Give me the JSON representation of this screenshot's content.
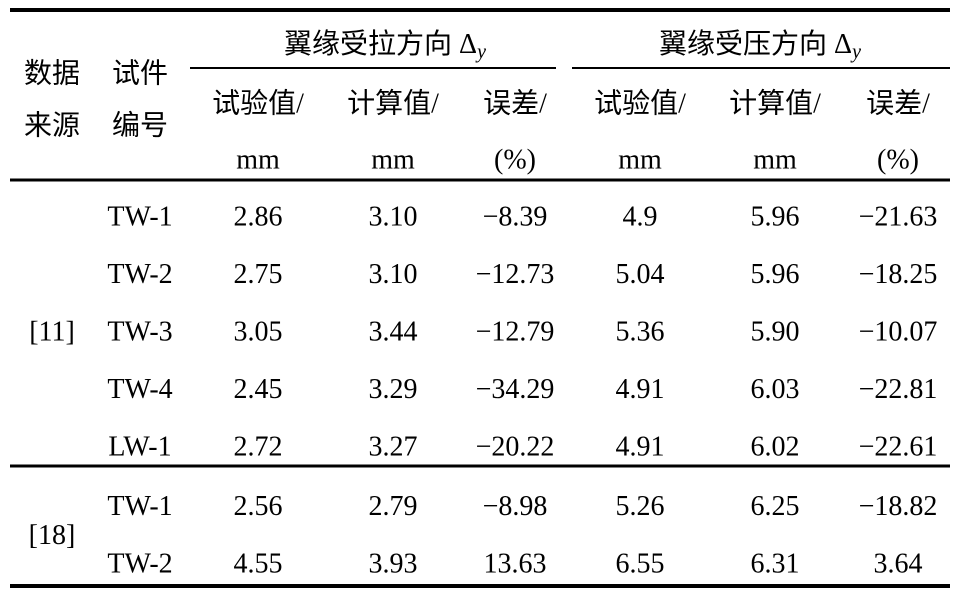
{
  "header": {
    "source": [
      "数据",
      "来源"
    ],
    "specimen": [
      "试件",
      "编号"
    ],
    "groups": [
      {
        "label": "翼缘受拉方向 Δ",
        "sub": "y",
        "columns": [
          [
            "试验值/",
            "mm"
          ],
          [
            "计算值/",
            "mm"
          ],
          [
            "误差/",
            "(%)"
          ]
        ]
      },
      {
        "label": "翼缘受压方向 Δ",
        "sub": "y",
        "columns": [
          [
            "试验值/",
            "mm"
          ],
          [
            "计算值/",
            "mm"
          ],
          [
            "误差/",
            "(%)"
          ]
        ]
      }
    ]
  },
  "table": {
    "groups": [
      {
        "source": "[11]",
        "rows": [
          [
            "TW-1",
            "2.86",
            "3.10",
            "−8.39",
            "4.9",
            "5.96",
            "−21.63"
          ],
          [
            "TW-2",
            "2.75",
            "3.10",
            "−12.73",
            "5.04",
            "5.96",
            "−18.25"
          ],
          [
            "TW-3",
            "3.05",
            "3.44",
            "−12.79",
            "5.36",
            "5.90",
            "−10.07"
          ],
          [
            "TW-4",
            "2.45",
            "3.29",
            "−34.29",
            "4.91",
            "6.03",
            "−22.81"
          ],
          [
            "LW-1",
            "2.72",
            "3.27",
            "−20.22",
            "4.91",
            "6.02",
            "−22.61"
          ]
        ]
      },
      {
        "source": "[18]",
        "rows": [
          [
            "TW-1",
            "2.56",
            "2.79",
            "−8.98",
            "5.26",
            "6.25",
            "−18.82"
          ],
          [
            "TW-2",
            "4.55",
            "3.93",
            "13.63",
            "6.55",
            "6.31",
            "3.64"
          ]
        ]
      }
    ]
  }
}
